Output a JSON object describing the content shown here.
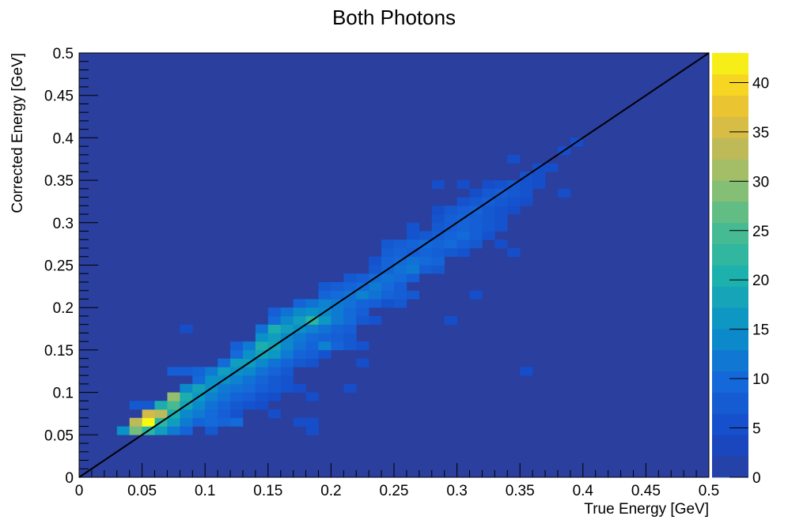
{
  "chart_data": {
    "type": "heatmap",
    "title": "Both Photons",
    "xlabel": "True Energy [GeV]",
    "ylabel": "Corrected Energy [GeV]",
    "xlim": [
      0,
      0.5
    ],
    "ylim": [
      0,
      0.5
    ],
    "xticks": [
      "0",
      "0.05",
      "0.1",
      "0.15",
      "0.2",
      "0.25",
      "0.3",
      "0.35",
      "0.4",
      "0.45",
      "0.5"
    ],
    "yticks": [
      "0",
      "0.05",
      "0.1",
      "0.15",
      "0.2",
      "0.25",
      "0.3",
      "0.35",
      "0.4",
      "0.45",
      "0.5"
    ],
    "colorbar": {
      "min": 0,
      "max": 43,
      "ticks": [
        "0",
        "5",
        "10",
        "15",
        "20",
        "25",
        "30",
        "35",
        "40"
      ]
    },
    "bin_width": 0.01,
    "background_color": "#2a3f9e",
    "cells": [
      [
        0.03,
        0.05,
        15
      ],
      [
        0.04,
        0.05,
        28
      ],
      [
        0.05,
        0.05,
        22
      ],
      [
        0.06,
        0.05,
        17
      ],
      [
        0.07,
        0.05,
        12
      ],
      [
        0.08,
        0.05,
        9
      ],
      [
        0.1,
        0.05,
        7
      ],
      [
        0.18,
        0.05,
        5
      ],
      [
        0.04,
        0.06,
        33
      ],
      [
        0.05,
        0.06,
        43
      ],
      [
        0.06,
        0.06,
        22
      ],
      [
        0.07,
        0.06,
        17
      ],
      [
        0.08,
        0.06,
        12
      ],
      [
        0.09,
        0.06,
        9
      ],
      [
        0.1,
        0.06,
        10
      ],
      [
        0.11,
        0.06,
        9
      ],
      [
        0.12,
        0.06,
        10
      ],
      [
        0.17,
        0.06,
        5
      ],
      [
        0.18,
        0.06,
        5
      ],
      [
        0.05,
        0.07,
        35
      ],
      [
        0.06,
        0.07,
        33
      ],
      [
        0.07,
        0.07,
        20
      ],
      [
        0.08,
        0.07,
        14
      ],
      [
        0.09,
        0.07,
        12
      ],
      [
        0.1,
        0.07,
        10
      ],
      [
        0.11,
        0.07,
        8
      ],
      [
        0.12,
        0.07,
        6
      ],
      [
        0.15,
        0.07,
        5
      ],
      [
        0.04,
        0.08,
        7
      ],
      [
        0.05,
        0.08,
        7
      ],
      [
        0.06,
        0.08,
        20
      ],
      [
        0.07,
        0.08,
        25
      ],
      [
        0.08,
        0.08,
        18
      ],
      [
        0.09,
        0.08,
        14
      ],
      [
        0.1,
        0.08,
        11
      ],
      [
        0.11,
        0.08,
        9
      ],
      [
        0.12,
        0.08,
        7
      ],
      [
        0.13,
        0.08,
        6
      ],
      [
        0.14,
        0.08,
        5
      ],
      [
        0.07,
        0.09,
        30
      ],
      [
        0.08,
        0.09,
        20
      ],
      [
        0.09,
        0.09,
        16
      ],
      [
        0.1,
        0.09,
        13
      ],
      [
        0.11,
        0.09,
        11
      ],
      [
        0.12,
        0.09,
        9
      ],
      [
        0.13,
        0.09,
        8
      ],
      [
        0.14,
        0.09,
        6
      ],
      [
        0.15,
        0.09,
        5
      ],
      [
        0.18,
        0.09,
        5
      ],
      [
        0.08,
        0.1,
        14
      ],
      [
        0.09,
        0.1,
        18
      ],
      [
        0.1,
        0.1,
        15
      ],
      [
        0.11,
        0.1,
        12
      ],
      [
        0.12,
        0.1,
        11
      ],
      [
        0.13,
        0.1,
        10
      ],
      [
        0.14,
        0.1,
        8
      ],
      [
        0.15,
        0.1,
        7
      ],
      [
        0.16,
        0.1,
        6
      ],
      [
        0.17,
        0.1,
        5
      ],
      [
        0.21,
        0.1,
        5
      ],
      [
        0.09,
        0.11,
        10
      ],
      [
        0.1,
        0.11,
        15
      ],
      [
        0.11,
        0.11,
        15
      ],
      [
        0.12,
        0.11,
        13
      ],
      [
        0.13,
        0.11,
        11
      ],
      [
        0.14,
        0.11,
        9
      ],
      [
        0.15,
        0.11,
        7
      ],
      [
        0.16,
        0.11,
        6
      ],
      [
        0.07,
        0.12,
        8
      ],
      [
        0.08,
        0.12,
        8
      ],
      [
        0.09,
        0.12,
        9
      ],
      [
        0.1,
        0.12,
        12
      ],
      [
        0.11,
        0.12,
        17
      ],
      [
        0.12,
        0.12,
        15
      ],
      [
        0.13,
        0.12,
        14
      ],
      [
        0.14,
        0.12,
        11
      ],
      [
        0.15,
        0.12,
        9
      ],
      [
        0.16,
        0.12,
        7
      ],
      [
        0.35,
        0.12,
        5
      ],
      [
        0.11,
        0.13,
        10
      ],
      [
        0.12,
        0.13,
        17
      ],
      [
        0.13,
        0.13,
        17
      ],
      [
        0.14,
        0.13,
        14
      ],
      [
        0.15,
        0.13,
        11
      ],
      [
        0.16,
        0.13,
        9
      ],
      [
        0.17,
        0.13,
        7
      ],
      [
        0.18,
        0.13,
        6
      ],
      [
        0.22,
        0.13,
        5
      ],
      [
        0.12,
        0.14,
        10
      ],
      [
        0.13,
        0.14,
        15
      ],
      [
        0.14,
        0.14,
        18
      ],
      [
        0.15,
        0.14,
        16
      ],
      [
        0.16,
        0.14,
        12
      ],
      [
        0.17,
        0.14,
        9
      ],
      [
        0.18,
        0.14,
        8
      ],
      [
        0.19,
        0.14,
        6
      ],
      [
        0.12,
        0.15,
        8
      ],
      [
        0.13,
        0.15,
        12
      ],
      [
        0.14,
        0.15,
        20
      ],
      [
        0.15,
        0.15,
        18
      ],
      [
        0.16,
        0.15,
        14
      ],
      [
        0.17,
        0.15,
        11
      ],
      [
        0.18,
        0.15,
        9
      ],
      [
        0.19,
        0.15,
        13
      ],
      [
        0.2,
        0.15,
        9
      ],
      [
        0.21,
        0.15,
        7
      ],
      [
        0.22,
        0.15,
        6
      ],
      [
        0.14,
        0.16,
        15
      ],
      [
        0.15,
        0.16,
        17
      ],
      [
        0.16,
        0.16,
        14
      ],
      [
        0.17,
        0.16,
        12
      ],
      [
        0.18,
        0.16,
        10
      ],
      [
        0.19,
        0.16,
        9
      ],
      [
        0.2,
        0.16,
        8
      ],
      [
        0.21,
        0.16,
        7
      ],
      [
        0.08,
        0.17,
        5
      ],
      [
        0.14,
        0.17,
        11
      ],
      [
        0.15,
        0.17,
        20
      ],
      [
        0.16,
        0.17,
        17
      ],
      [
        0.17,
        0.17,
        15
      ],
      [
        0.18,
        0.17,
        13
      ],
      [
        0.19,
        0.17,
        11
      ],
      [
        0.2,
        0.17,
        9
      ],
      [
        0.21,
        0.17,
        8
      ],
      [
        0.15,
        0.18,
        10
      ],
      [
        0.16,
        0.18,
        14
      ],
      [
        0.17,
        0.18,
        17
      ],
      [
        0.18,
        0.18,
        22
      ],
      [
        0.19,
        0.18,
        16
      ],
      [
        0.2,
        0.18,
        12
      ],
      [
        0.21,
        0.18,
        10
      ],
      [
        0.22,
        0.18,
        7
      ],
      [
        0.23,
        0.18,
        6
      ],
      [
        0.29,
        0.18,
        5
      ],
      [
        0.15,
        0.19,
        8
      ],
      [
        0.16,
        0.19,
        11
      ],
      [
        0.17,
        0.19,
        14
      ],
      [
        0.18,
        0.19,
        15
      ],
      [
        0.19,
        0.19,
        14
      ],
      [
        0.2,
        0.19,
        12
      ],
      [
        0.21,
        0.19,
        10
      ],
      [
        0.22,
        0.19,
        8
      ],
      [
        0.17,
        0.2,
        9
      ],
      [
        0.18,
        0.2,
        11
      ],
      [
        0.19,
        0.2,
        13
      ],
      [
        0.2,
        0.2,
        12
      ],
      [
        0.21,
        0.2,
        11
      ],
      [
        0.22,
        0.2,
        9
      ],
      [
        0.23,
        0.2,
        8
      ],
      [
        0.24,
        0.2,
        6
      ],
      [
        0.25,
        0.2,
        7
      ],
      [
        0.19,
        0.21,
        9
      ],
      [
        0.2,
        0.21,
        10
      ],
      [
        0.21,
        0.21,
        11
      ],
      [
        0.22,
        0.21,
        13
      ],
      [
        0.23,
        0.21,
        11
      ],
      [
        0.24,
        0.21,
        9
      ],
      [
        0.25,
        0.21,
        8
      ],
      [
        0.26,
        0.21,
        7
      ],
      [
        0.31,
        0.21,
        5
      ],
      [
        0.19,
        0.22,
        7
      ],
      [
        0.2,
        0.22,
        8
      ],
      [
        0.21,
        0.22,
        9
      ],
      [
        0.22,
        0.22,
        10
      ],
      [
        0.23,
        0.22,
        12
      ],
      [
        0.24,
        0.22,
        10
      ],
      [
        0.25,
        0.22,
        8
      ],
      [
        0.21,
        0.23,
        7
      ],
      [
        0.22,
        0.23,
        8
      ],
      [
        0.23,
        0.23,
        10
      ],
      [
        0.24,
        0.23,
        11
      ],
      [
        0.25,
        0.23,
        10
      ],
      [
        0.26,
        0.23,
        8
      ],
      [
        0.23,
        0.24,
        7
      ],
      [
        0.24,
        0.24,
        9
      ],
      [
        0.25,
        0.24,
        11
      ],
      [
        0.26,
        0.24,
        12
      ],
      [
        0.27,
        0.24,
        8
      ],
      [
        0.28,
        0.24,
        7
      ],
      [
        0.23,
        0.25,
        6
      ],
      [
        0.24,
        0.25,
        9
      ],
      [
        0.25,
        0.25,
        10
      ],
      [
        0.26,
        0.25,
        11
      ],
      [
        0.27,
        0.25,
        10
      ],
      [
        0.28,
        0.25,
        9
      ],
      [
        0.24,
        0.26,
        8
      ],
      [
        0.25,
        0.26,
        9
      ],
      [
        0.26,
        0.26,
        8
      ],
      [
        0.27,
        0.26,
        9
      ],
      [
        0.28,
        0.26,
        8
      ],
      [
        0.29,
        0.26,
        7
      ],
      [
        0.3,
        0.26,
        6
      ],
      [
        0.34,
        0.26,
        5
      ],
      [
        0.24,
        0.27,
        7
      ],
      [
        0.25,
        0.27,
        8
      ],
      [
        0.26,
        0.27,
        9
      ],
      [
        0.27,
        0.27,
        10
      ],
      [
        0.28,
        0.27,
        9
      ],
      [
        0.29,
        0.27,
        10
      ],
      [
        0.3,
        0.27,
        8
      ],
      [
        0.31,
        0.27,
        7
      ],
      [
        0.33,
        0.27,
        5
      ],
      [
        0.26,
        0.28,
        6
      ],
      [
        0.27,
        0.28,
        7
      ],
      [
        0.28,
        0.28,
        8
      ],
      [
        0.29,
        0.28,
        9
      ],
      [
        0.3,
        0.28,
        10
      ],
      [
        0.31,
        0.28,
        8
      ],
      [
        0.32,
        0.28,
        6
      ],
      [
        0.26,
        0.29,
        6
      ],
      [
        0.28,
        0.29,
        7
      ],
      [
        0.29,
        0.29,
        8
      ],
      [
        0.3,
        0.29,
        9
      ],
      [
        0.31,
        0.29,
        8
      ],
      [
        0.32,
        0.29,
        7
      ],
      [
        0.33,
        0.29,
        6
      ],
      [
        0.28,
        0.3,
        6
      ],
      [
        0.29,
        0.3,
        8
      ],
      [
        0.3,
        0.3,
        9
      ],
      [
        0.31,
        0.3,
        8
      ],
      [
        0.32,
        0.3,
        7
      ],
      [
        0.33,
        0.3,
        6
      ],
      [
        0.28,
        0.31,
        5
      ],
      [
        0.29,
        0.31,
        7
      ],
      [
        0.3,
        0.31,
        8
      ],
      [
        0.31,
        0.31,
        9
      ],
      [
        0.32,
        0.31,
        7
      ],
      [
        0.33,
        0.31,
        6
      ],
      [
        0.34,
        0.31,
        5
      ],
      [
        0.3,
        0.32,
        6
      ],
      [
        0.31,
        0.32,
        7
      ],
      [
        0.32,
        0.32,
        8
      ],
      [
        0.33,
        0.32,
        7
      ],
      [
        0.34,
        0.32,
        6
      ],
      [
        0.35,
        0.32,
        5
      ],
      [
        0.31,
        0.33,
        5
      ],
      [
        0.32,
        0.33,
        7
      ],
      [
        0.33,
        0.33,
        8
      ],
      [
        0.34,
        0.33,
        7
      ],
      [
        0.35,
        0.33,
        6
      ],
      [
        0.38,
        0.33,
        5
      ],
      [
        0.32,
        0.34,
        5
      ],
      [
        0.33,
        0.34,
        6
      ],
      [
        0.34,
        0.34,
        7
      ],
      [
        0.35,
        0.34,
        6
      ],
      [
        0.36,
        0.34,
        5
      ],
      [
        0.28,
        0.34,
        5
      ],
      [
        0.35,
        0.35,
        6
      ],
      [
        0.36,
        0.35,
        5
      ],
      [
        0.3,
        0.34,
        5
      ],
      [
        0.34,
        0.37,
        5
      ],
      [
        0.36,
        0.36,
        5
      ],
      [
        0.37,
        0.36,
        5
      ],
      [
        0.39,
        0.39,
        5
      ],
      [
        0.38,
        0.38,
        5
      ]
    ]
  }
}
